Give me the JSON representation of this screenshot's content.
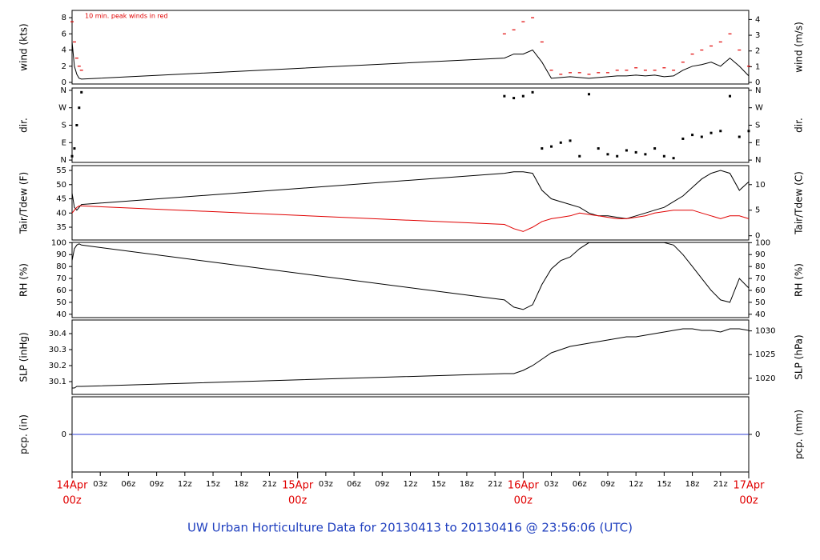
{
  "chart_data": {
    "type": "multi-panel",
    "title": "UW Urban Horticulture Data for 20130413  to  20130416 @ 23:56:06  (UTC)",
    "x": [
      0,
      0.25,
      0.5,
      0.75,
      1,
      46,
      47,
      48,
      49,
      50,
      51,
      52,
      53,
      54,
      55,
      56,
      57,
      58,
      59,
      60,
      61,
      62,
      63,
      64,
      65,
      66,
      67,
      68,
      69,
      70,
      71,
      72
    ],
    "xlim": [
      0,
      72
    ],
    "xticks": [
      {
        "value": 0,
        "label": "14Apr",
        "label2": "00z"
      },
      {
        "value": 3,
        "label": "03z"
      },
      {
        "value": 6,
        "label": "06z"
      },
      {
        "value": 9,
        "label": "09z"
      },
      {
        "value": 12,
        "label": "12z"
      },
      {
        "value": 15,
        "label": "15z"
      },
      {
        "value": 18,
        "label": "18z"
      },
      {
        "value": 21,
        "label": "21z"
      },
      {
        "value": 24,
        "label": "15Apr",
        "label2": "00z"
      },
      {
        "value": 27,
        "label": "03z"
      },
      {
        "value": 30,
        "label": "06z"
      },
      {
        "value": 33,
        "label": "09z"
      },
      {
        "value": 36,
        "label": "12z"
      },
      {
        "value": 39,
        "label": "15z"
      },
      {
        "value": 42,
        "label": "18z"
      },
      {
        "value": 45,
        "label": "21z"
      },
      {
        "value": 48,
        "label": "16Apr",
        "label2": "00z"
      },
      {
        "value": 51,
        "label": "03z"
      },
      {
        "value": 54,
        "label": "06z"
      },
      {
        "value": 57,
        "label": "09z"
      },
      {
        "value": 60,
        "label": "12z"
      },
      {
        "value": 63,
        "label": "15z"
      },
      {
        "value": 66,
        "label": "18z"
      },
      {
        "value": 69,
        "label": "21z"
      },
      {
        "value": 72,
        "label": "17Apr",
        "label2": "00z"
      }
    ],
    "panels": [
      {
        "ylabel": "wind (kts)",
        "y2label": "wind (m/s)",
        "annotation": "10 min. peak winds in red",
        "ylim": [
          -0.2,
          8.9
        ],
        "yticks": [
          0,
          2,
          4,
          6,
          8
        ],
        "y2lim": [
          -0.1,
          4.58
        ],
        "y2ticks": [
          0,
          1,
          2,
          3,
          4
        ],
        "series": [
          {
            "style": "dash",
            "color": "#e00000",
            "values": [
              7.5,
              5,
              3,
              2,
              1.5,
              6,
              6.5,
              7.5,
              8,
              5,
              1.5,
              1,
              1.2,
              1.2,
              1,
              1.2,
              1.2,
              1.5,
              1.5,
              1.8,
              1.5,
              1.5,
              1.8,
              1.5,
              2.5,
              3.5,
              4,
              4.5,
              5,
              6,
              4,
              2
            ]
          },
          {
            "style": "line",
            "color": "#000000",
            "values": [
              5,
              2,
              1,
              0.5,
              0.4,
              3,
              3.5,
              3.5,
              4,
              2.5,
              0.5,
              0.6,
              0.7,
              0.6,
              0.5,
              0.6,
              0.7,
              0.8,
              0.8,
              0.9,
              0.8,
              0.9,
              0.7,
              0.8,
              1.5,
              2,
              2.2,
              2.5,
              2,
              3,
              2,
              0.8
            ]
          }
        ]
      },
      {
        "ylabel": "dir.",
        "y2label": "dir.",
        "ylim": [
          -12,
          372
        ],
        "yticks": [
          {
            "value": 0,
            "label": "N"
          },
          {
            "value": 90,
            "label": "E"
          },
          {
            "value": 180,
            "label": "S"
          },
          {
            "value": 270,
            "label": "W"
          },
          {
            "value": 360,
            "label": "N"
          }
        ],
        "y2lim": [
          -12,
          372
        ],
        "y2ticks": [
          {
            "value": 0,
            "label": "N"
          },
          {
            "value": 90,
            "label": "E"
          },
          {
            "value": 180,
            "label": "S"
          },
          {
            "value": 270,
            "label": "W"
          },
          {
            "value": 360,
            "label": "N"
          }
        ],
        "series": [
          {
            "style": "dot",
            "color": "#000000",
            "values": [
              20,
              60,
              180,
              270,
              350,
              330,
              320,
              330,
              350,
              60,
              70,
              90,
              100,
              20,
              340,
              60,
              30,
              20,
              50,
              40,
              30,
              60,
              20,
              10,
              110,
              130,
              120,
              140,
              150,
              330,
              120,
              150
            ]
          }
        ]
      },
      {
        "ylabel": "Tair/Tdew (F)",
        "y2label": "Tair/Tdew (C)",
        "ylim": [
          30.5,
          56.7
        ],
        "yticks": [
          35,
          40,
          45,
          50,
          55
        ],
        "y2lim": [
          -0.83,
          13.72
        ],
        "y2ticks": [
          0,
          5,
          10
        ],
        "series": [
          {
            "style": "line",
            "color": "#000000",
            "values": [
              47,
              42,
              41,
              42,
              43,
              54,
              54.5,
              54.5,
              54,
              48,
              45,
              44,
              43,
              42,
              40,
              39,
              39,
              38.5,
              38,
              39,
              40,
              41,
              42,
              44,
              46,
              49,
              52,
              54,
              55,
              54,
              48,
              51
            ]
          },
          {
            "style": "line",
            "color": "#e00000",
            "values": [
              40,
              41,
              42,
              42.5,
              42.5,
              36,
              34.5,
              33.5,
              35,
              37,
              38,
              38.5,
              39,
              40,
              39.5,
              39,
              38.5,
              38,
              38,
              38.5,
              39,
              40,
              40.5,
              41,
              41,
              41,
              40,
              39,
              38,
              39,
              39,
              38
            ]
          }
        ]
      },
      {
        "ylabel": "RH (%)",
        "y2label": "RH (%)",
        "ylim": [
          37.2,
          100.2
        ],
        "yticks": [
          40,
          50,
          60,
          70,
          80,
          90,
          100
        ],
        "y2lim": [
          37.2,
          100.2
        ],
        "y2ticks": [
          40,
          50,
          60,
          70,
          80,
          90,
          100
        ],
        "series": [
          {
            "style": "line",
            "color": "#000000",
            "values": [
              85,
              95,
              98,
              99,
              98,
              52,
              46,
              44,
              48,
              65,
              78,
              85,
              88,
              95,
              100,
              100,
              100,
              100,
              100,
              100,
              100,
              100,
              100,
              98,
              90,
              80,
              70,
              60,
              52,
              50,
              70,
              62
            ]
          }
        ]
      },
      {
        "ylabel": "SLP (inHg)",
        "y2label": "SLP (hPa)",
        "ylim": [
          30.02,
          30.485
        ],
        "yticks": [
          30.1,
          30.2,
          30.3,
          30.4
        ],
        "y2lim": [
          1016.6,
          1032.3
        ],
        "y2ticks": [
          1020,
          1025,
          1030
        ],
        "series": [
          {
            "style": "line",
            "color": "#000000",
            "values": [
              30.06,
              30.06,
              30.07,
              30.07,
              30.07,
              30.15,
              30.15,
              30.17,
              30.2,
              30.24,
              30.28,
              30.3,
              30.32,
              30.33,
              30.34,
              30.35,
              30.36,
              30.37,
              30.38,
              30.38,
              30.39,
              30.4,
              30.41,
              30.42,
              30.43,
              30.43,
              30.42,
              30.42,
              30.41,
              30.43,
              30.43,
              30.42
            ]
          }
        ]
      },
      {
        "ylabel": "pcp. (in)",
        "y2label": "pcp. (mm)",
        "ylim": [
          -1,
          1
        ],
        "yticks": [
          0
        ],
        "y2lim": [
          -1,
          1
        ],
        "y2ticks": [
          0
        ],
        "series": [
          {
            "style": "line",
            "color": "#2f3fd6",
            "values": [
              0,
              0,
              0,
              0,
              0,
              0,
              0,
              0,
              0,
              0,
              0,
              0,
              0,
              0,
              0,
              0,
              0,
              0,
              0,
              0,
              0,
              0,
              0,
              0,
              0,
              0,
              0,
              0,
              0,
              0,
              0,
              0
            ]
          }
        ]
      }
    ]
  }
}
